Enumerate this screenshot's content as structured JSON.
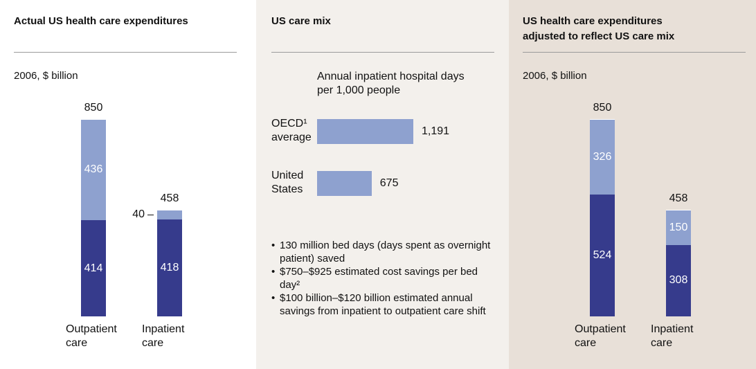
{
  "chart_data": [
    {
      "type": "stacked_bar",
      "title": "Actual US health care expenditures",
      "subtitle": "2006, $ billion",
      "categories": [
        "Outpatient care",
        "Inpatient care"
      ],
      "series": [
        {
          "color": "#363b8c",
          "values": [
            414,
            418
          ]
        },
        {
          "color": "#8ea1cf",
          "values": [
            436,
            40
          ]
        }
      ],
      "totals": [
        850,
        458
      ]
    },
    {
      "type": "hbar",
      "title": "US care mix",
      "subtitle": "Annual inpatient hospital days per 1,000 people",
      "categories": [
        "OECD¹ average",
        "United States"
      ],
      "values": [
        1191,
        675
      ],
      "value_labels": [
        "1,191",
        "675"
      ],
      "color": "#8ea1cf",
      "notes": [
        "130 million bed days (days spent as overnight patient) saved",
        "$750–$925 estimated cost savings per bed day²",
        "$100 billion–$120 billion estimated annual savings from inpatient to outpatient care shift"
      ]
    },
    {
      "type": "stacked_bar",
      "title": "US health care expenditures adjusted to reflect US care mix",
      "subtitle": "2006, $ billion",
      "categories": [
        "Outpatient care",
        "Inpatient care"
      ],
      "series": [
        {
          "color": "#363b8c",
          "values": [
            524,
            308
          ]
        },
        {
          "color": "#8ea1cf",
          "values": [
            326,
            150
          ]
        }
      ],
      "totals": [
        850,
        458
      ]
    }
  ]
}
